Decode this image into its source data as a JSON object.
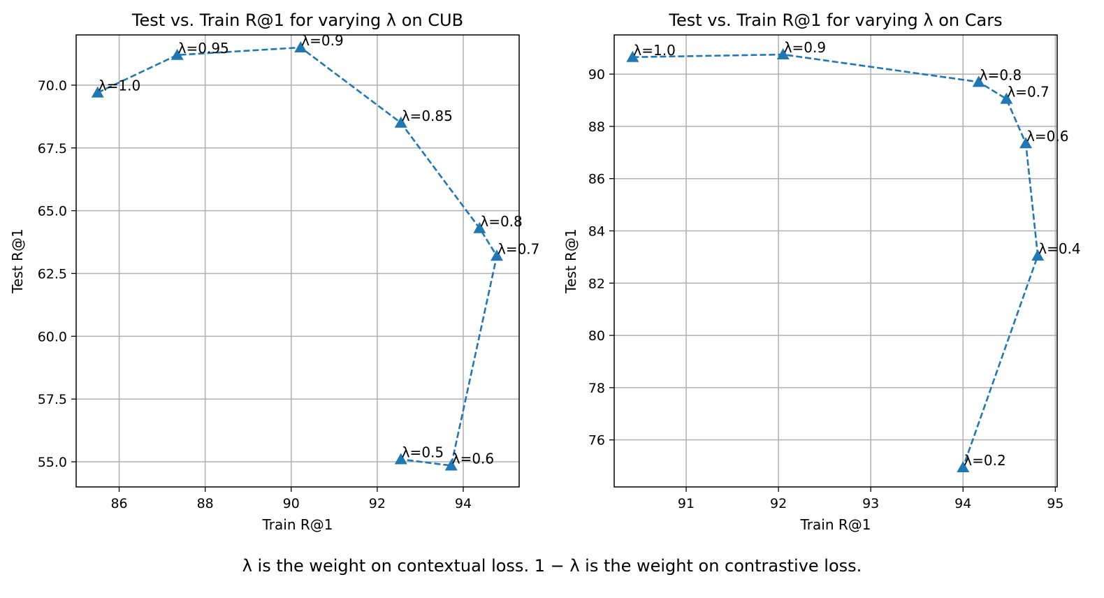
{
  "chart_data": [
    {
      "type": "line",
      "title": "Test vs. Train R@1 for varying λ on CUB",
      "xlabel": "Train R@1",
      "ylabel": "Test R@1",
      "xlim": [
        85.0,
        95.3
      ],
      "ylim": [
        54.0,
        72.0
      ],
      "xticks": [
        86,
        88,
        90,
        92,
        94
      ],
      "yticks": [
        55.0,
        57.5,
        60.0,
        62.5,
        65.0,
        67.5,
        70.0
      ],
      "ytick_format": "0.0",
      "grid": true,
      "marker": "triangle",
      "linestyle": "dashed",
      "color": "#1f77b4",
      "points": [
        {
          "label": "λ=1.0",
          "x": 85.5,
          "y": 69.7
        },
        {
          "label": "λ=0.95",
          "x": 87.35,
          "y": 71.2
        },
        {
          "label": "λ=0.9",
          "x": 90.22,
          "y": 71.5
        },
        {
          "label": "λ=0.85",
          "x": 92.55,
          "y": 68.5
        },
        {
          "label": "λ=0.8",
          "x": 94.38,
          "y": 64.3
        },
        {
          "label": "λ=0.7",
          "x": 94.78,
          "y": 63.2
        },
        {
          "label": "λ=0.6",
          "x": 93.72,
          "y": 54.85
        },
        {
          "label": "λ=0.5",
          "x": 92.55,
          "y": 55.1
        }
      ]
    },
    {
      "type": "line",
      "title": "Test vs. Train R@1 for varying λ on Cars",
      "xlabel": "Train R@1",
      "ylabel": "Test R@1",
      "xlim": [
        90.22,
        95.02
      ],
      "ylim": [
        74.2,
        91.5
      ],
      "xticks": [
        91,
        92,
        93,
        94,
        95
      ],
      "yticks": [
        76,
        78,
        80,
        82,
        84,
        86,
        88,
        90
      ],
      "ytick_format": "0",
      "grid": true,
      "marker": "triangle",
      "linestyle": "dashed",
      "color": "#1f77b4",
      "points": [
        {
          "label": "λ=1.0",
          "x": 90.42,
          "y": 90.65
        },
        {
          "label": "λ=0.9",
          "x": 92.05,
          "y": 90.75
        },
        {
          "label": "λ=0.8",
          "x": 94.17,
          "y": 89.7
        },
        {
          "label": "λ=0.7",
          "x": 94.47,
          "y": 89.05
        },
        {
          "label": "λ=0.6",
          "x": 94.68,
          "y": 87.35
        },
        {
          "label": "λ=0.4",
          "x": 94.81,
          "y": 83.05
        },
        {
          "label": "λ=0.2",
          "x": 94.0,
          "y": 74.95
        }
      ]
    }
  ],
  "caption": "λ is the weight on contextual loss. 1 − λ is the weight on contrastive loss."
}
